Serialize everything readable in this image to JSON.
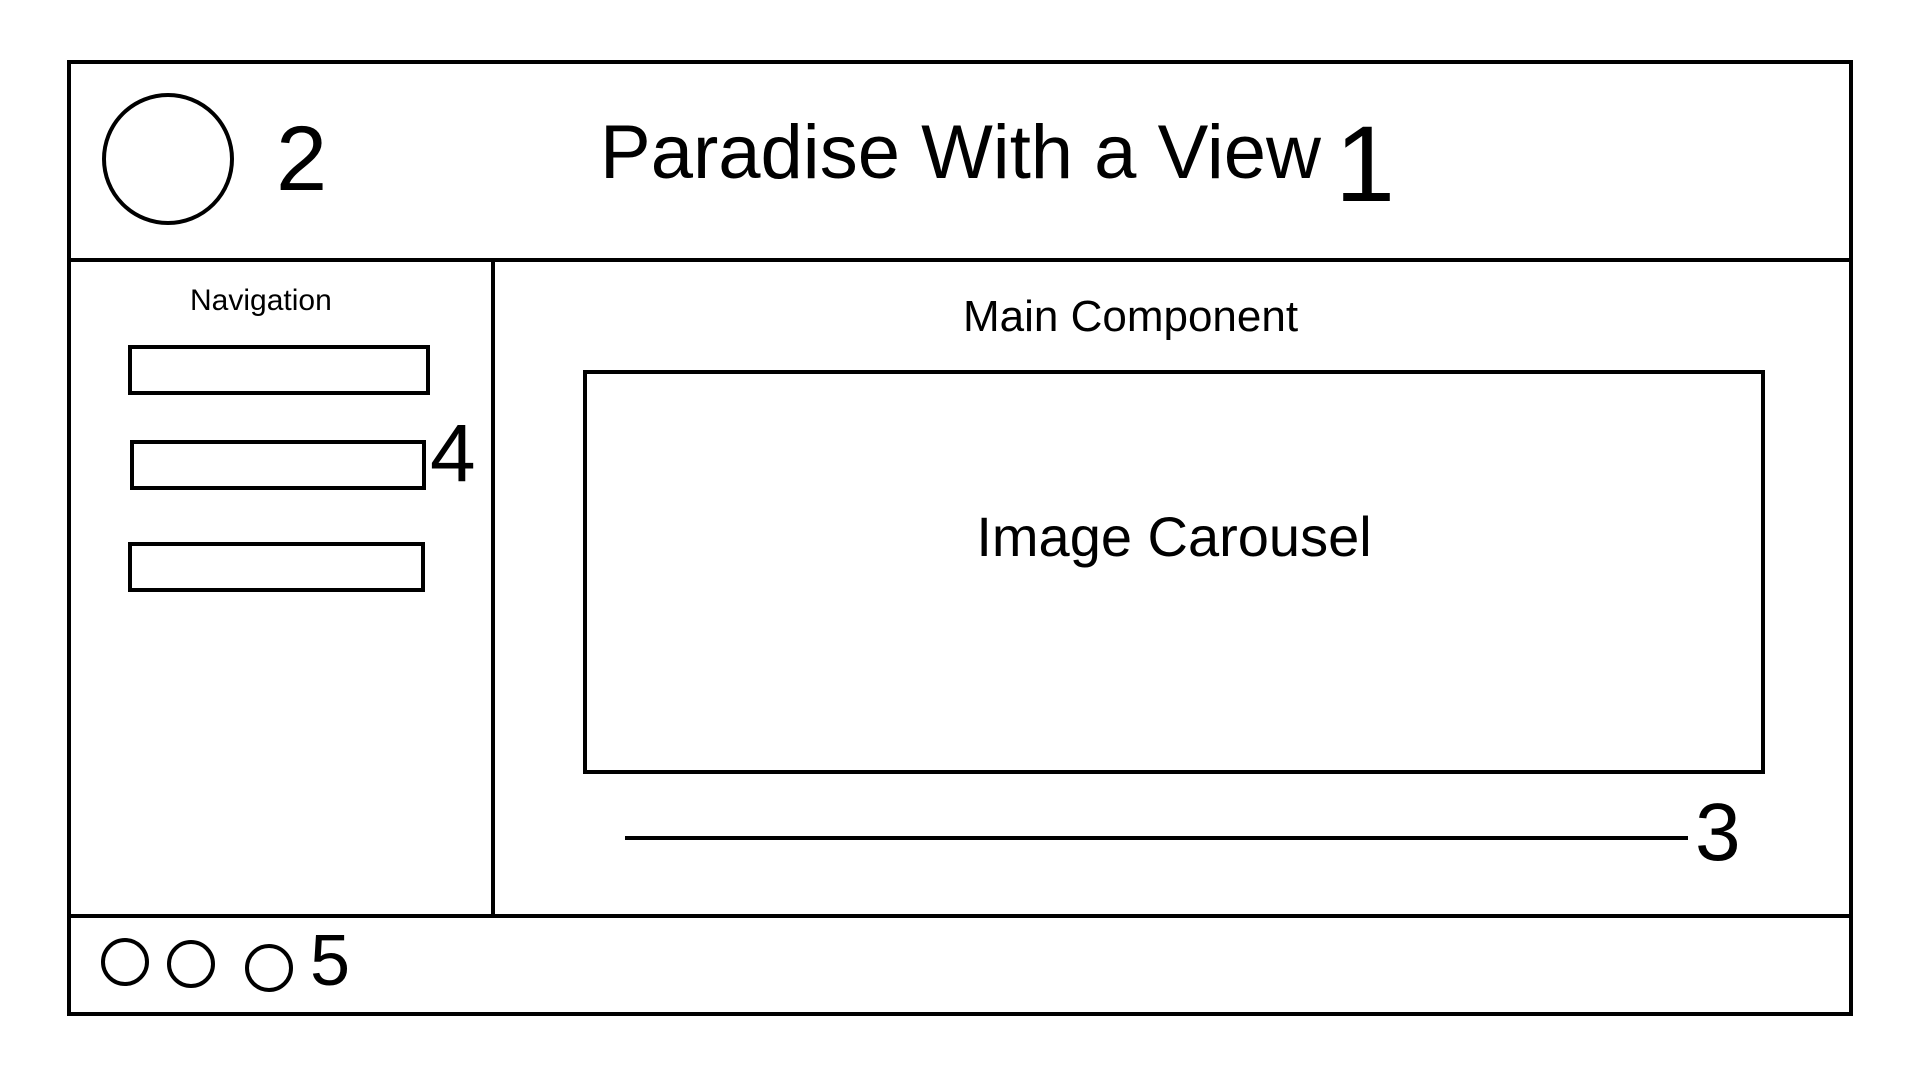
{
  "header": {
    "title": "Paradise With a View",
    "title_marker": "1",
    "logo_marker": "2"
  },
  "sidebar": {
    "heading": "Navigation",
    "marker": "4",
    "items_count_visible": 3
  },
  "main": {
    "heading": "Main Component",
    "carousel_label": "Image Carousel",
    "indicator_marker": "3"
  },
  "footer": {
    "marker": "5"
  }
}
